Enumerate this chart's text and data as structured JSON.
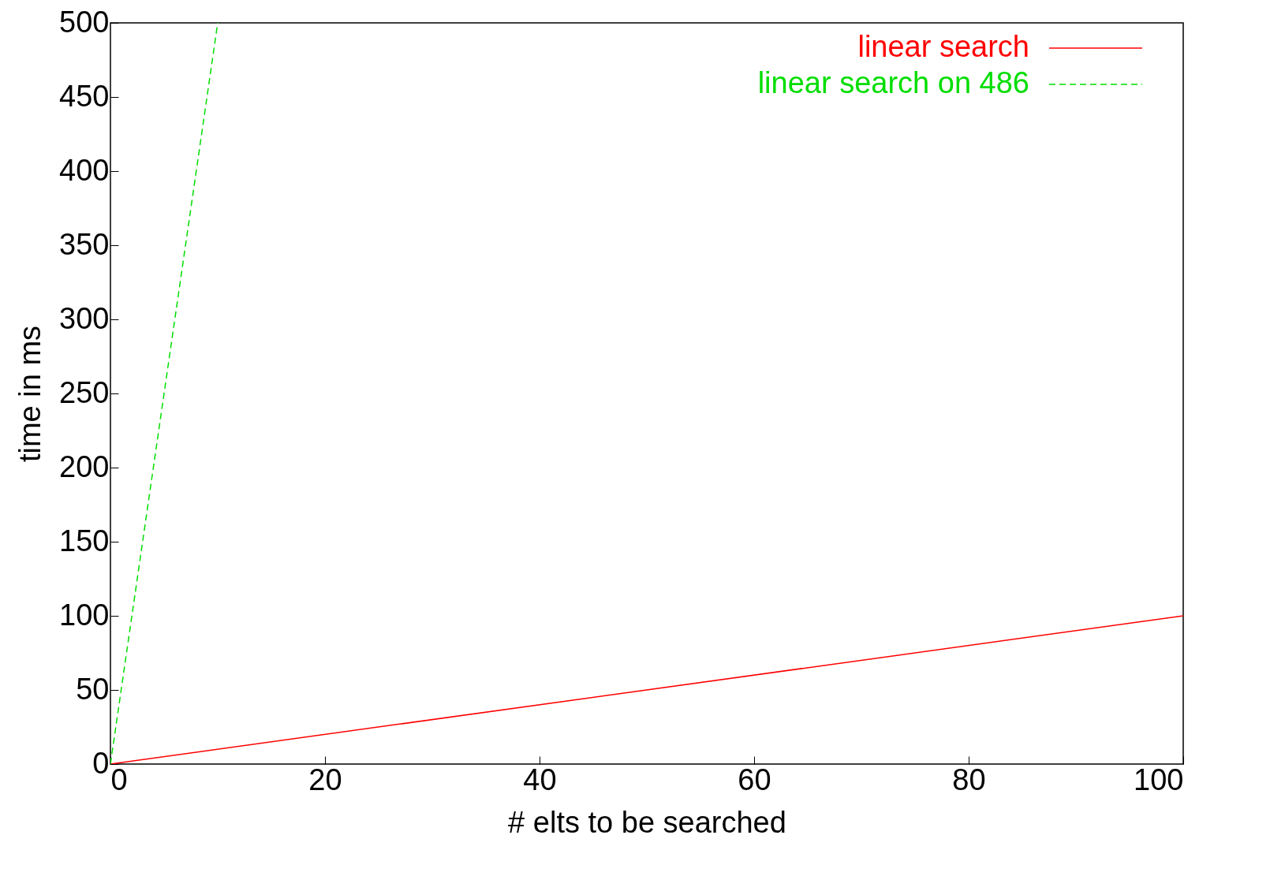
{
  "chart_data": {
    "type": "line",
    "xlabel": "# elts to be searched",
    "ylabel": "time in ms",
    "xlim": [
      0,
      100
    ],
    "ylim": [
      0,
      500
    ],
    "xticks": [
      0,
      20,
      40,
      60,
      80,
      100
    ],
    "yticks": [
      0,
      50,
      100,
      150,
      200,
      250,
      300,
      350,
      400,
      450,
      500
    ],
    "grid": false,
    "legend": "top right",
    "marker": "none",
    "series": [
      {
        "name": "linear search",
        "color": "#ff0000",
        "line_style": "solid",
        "x": [
          0,
          100
        ],
        "values": [
          0,
          100
        ]
      },
      {
        "name": "linear search on 486",
        "color": "#00dd00",
        "line_style": "dashed",
        "x": [
          0,
          10
        ],
        "values": [
          0,
          500
        ]
      }
    ]
  }
}
